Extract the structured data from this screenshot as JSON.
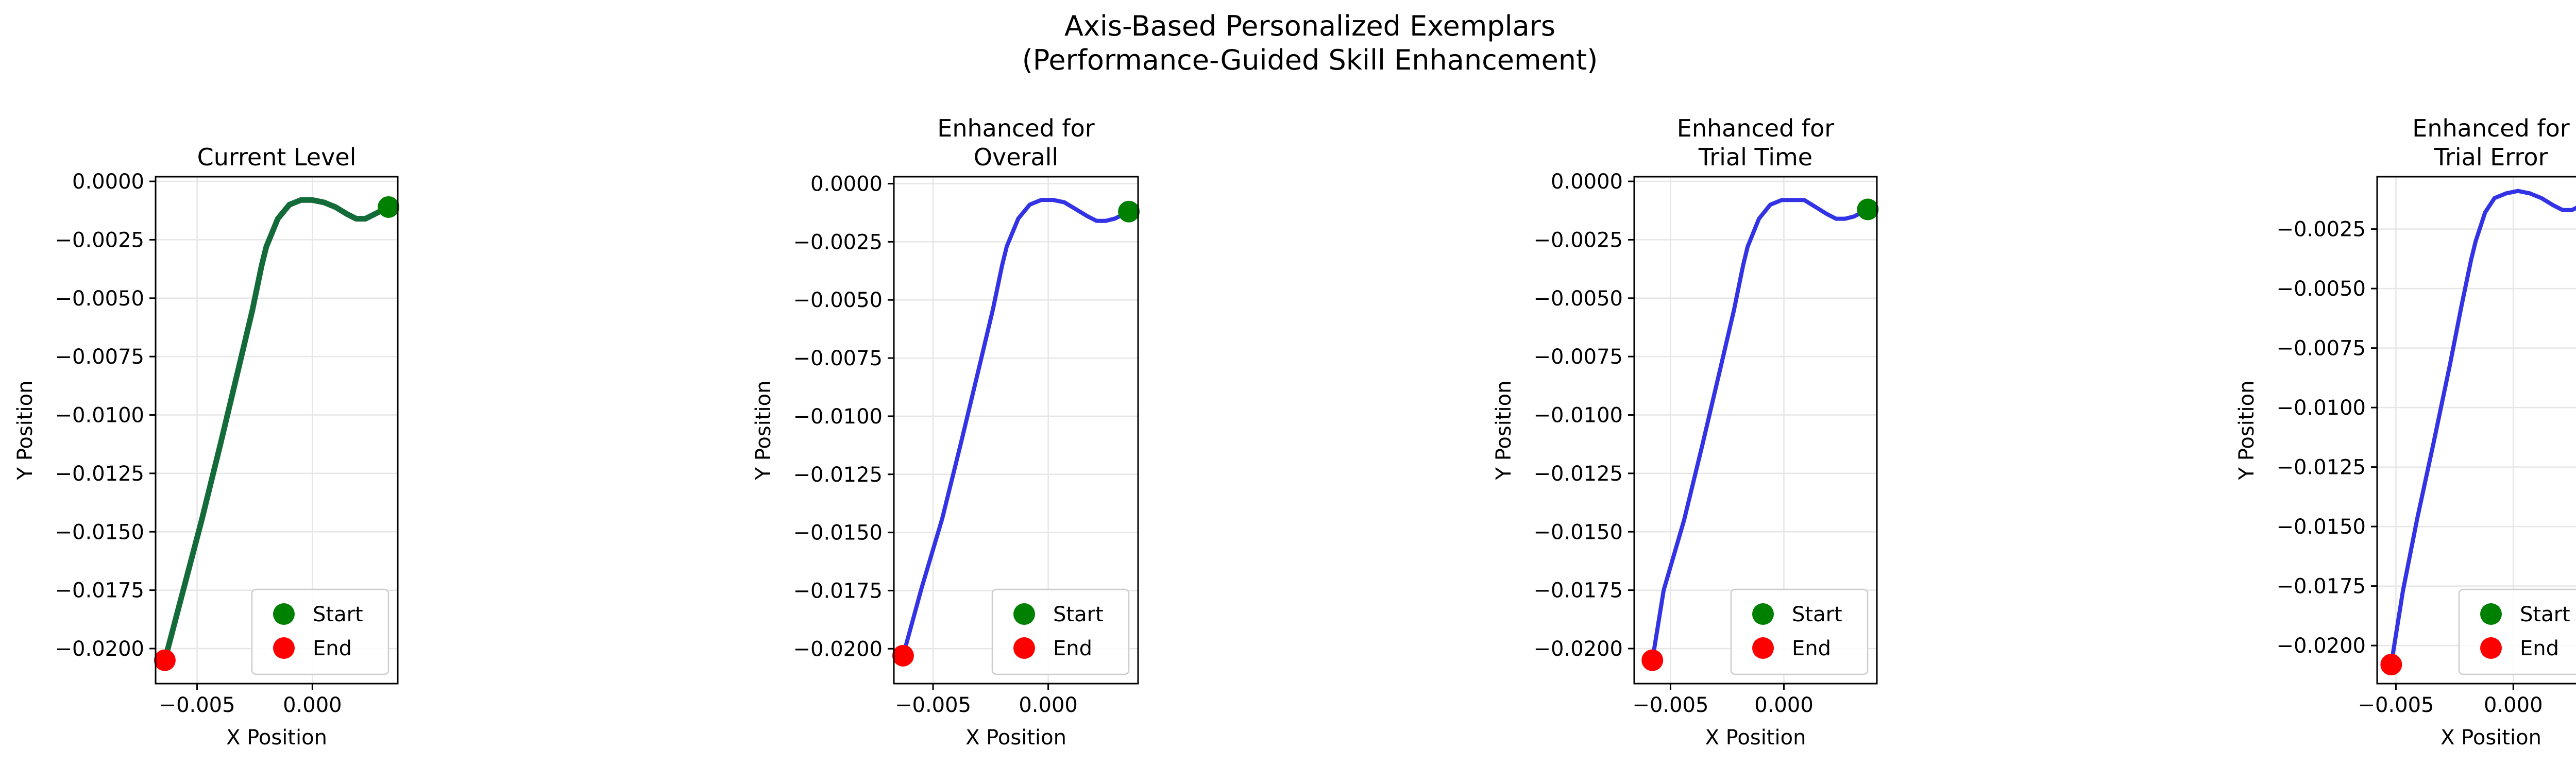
{
  "figure": {
    "title_line1": "Axis-Based Personalized Exemplars",
    "title_line2": "(Performance-Guided Skill Enhancement)"
  },
  "chart_data": [
    {
      "type": "line",
      "title_lines": [
        "Current Level"
      ],
      "xlabel": "X Position",
      "ylabel": "Y Position",
      "xlim": [
        -0.0068,
        0.0037
      ],
      "ylim": [
        -0.0215,
        0.0002
      ],
      "xticks": [
        -0.005,
        0.0
      ],
      "xtick_labels": [
        "−0.005",
        "0.000"
      ],
      "yticks": [
        0.0,
        -0.0025,
        -0.005,
        -0.0075,
        -0.01,
        -0.0125,
        -0.015,
        -0.0175,
        -0.02
      ],
      "ytick_labels": [
        "0.0000",
        "−0.0025",
        "−0.0050",
        "−0.0075",
        "−0.0100",
        "−0.0125",
        "−0.0150",
        "−0.0175",
        "−0.0200"
      ],
      "grid": true,
      "legend_position": "lower right",
      "line_color": "#146b3a",
      "start_color": "#008000",
      "end_color": "#ff0000",
      "series": [
        {
          "x": [
            0.0033,
            0.0031,
            0.0027,
            0.0023,
            0.0019,
            0.0015,
            0.001,
            0.0005,
            0.0,
            -0.0005,
            -0.001,
            -0.0015,
            -0.002,
            -0.0022,
            -0.0026,
            -0.0032,
            -0.004,
            -0.0048,
            -0.0056,
            -0.0064
          ],
          "y": [
            -0.0011,
            -0.0012,
            -0.0014,
            -0.0016,
            -0.0016,
            -0.0014,
            -0.0011,
            -0.0009,
            -0.0008,
            -0.0008,
            -0.001,
            -0.0016,
            -0.0028,
            -0.0036,
            -0.0055,
            -0.008,
            -0.0113,
            -0.0145,
            -0.0175,
            -0.0205
          ]
        }
      ],
      "legend": [
        "Start",
        "End"
      ]
    },
    {
      "type": "line",
      "title_lines": [
        "Enhanced for",
        "Overall"
      ],
      "xlabel": "X Position",
      "ylabel": "Y Position",
      "xlim": [
        -0.0067,
        0.0039
      ],
      "ylim": [
        -0.0215,
        0.0003
      ],
      "xticks": [
        -0.005,
        0.0
      ],
      "xtick_labels": [
        "−0.005",
        "0.000"
      ],
      "yticks": [
        0.0,
        -0.0025,
        -0.005,
        -0.0075,
        -0.01,
        -0.0125,
        -0.015,
        -0.0175,
        -0.02
      ],
      "ytick_labels": [
        "0.0000",
        "−0.0025",
        "−0.0050",
        "−0.0075",
        "−0.0100",
        "−0.0125",
        "−0.0150",
        "−0.0175",
        "−0.0200"
      ],
      "grid": true,
      "legend_position": "lower right",
      "line_color": "#3333e6",
      "start_color": "#008000",
      "end_color": "#ff0000",
      "series": [
        {
          "x": [
            0.0035,
            0.0033,
            0.0029,
            0.0025,
            0.0021,
            0.0017,
            0.0012,
            0.0007,
            0.0002,
            -0.0003,
            -0.0008,
            -0.0013,
            -0.0018,
            -0.002,
            -0.0024,
            -0.003,
            -0.0038,
            -0.0046,
            -0.0055,
            -0.0063
          ],
          "y": [
            -0.0012,
            -0.0013,
            -0.0015,
            -0.0016,
            -0.0016,
            -0.0014,
            -0.0011,
            -0.0008,
            -0.0007,
            -0.0007,
            -0.0009,
            -0.0015,
            -0.0027,
            -0.0035,
            -0.0054,
            -0.0079,
            -0.0112,
            -0.0144,
            -0.0174,
            -0.0203
          ]
        }
      ],
      "legend": [
        "Start",
        "End"
      ]
    },
    {
      "type": "line",
      "title_lines": [
        "Enhanced for",
        "Trial Time"
      ],
      "xlabel": "X Position",
      "ylabel": "Y Position",
      "xlim": [
        -0.0066,
        0.0041
      ],
      "ylim": [
        -0.0215,
        0.0002
      ],
      "xticks": [
        -0.005,
        0.0
      ],
      "xtick_labels": [
        "−0.005",
        "0.000"
      ],
      "yticks": [
        0.0,
        -0.0025,
        -0.005,
        -0.0075,
        -0.01,
        -0.0125,
        -0.015,
        -0.0175,
        -0.02
      ],
      "ytick_labels": [
        "0.0000",
        "−0.0025",
        "−0.0050",
        "−0.0075",
        "−0.0100",
        "−0.0125",
        "−0.0150",
        "−0.0175",
        "−0.0200"
      ],
      "grid": true,
      "legend_position": "lower right",
      "line_color": "#3333e6",
      "start_color": "#008000",
      "end_color": "#ff0000",
      "series": [
        {
          "x": [
            0.0037,
            0.0035,
            0.0031,
            0.0027,
            0.0023,
            0.0019,
            0.0014,
            0.0009,
            0.0004,
            -0.0001,
            -0.0006,
            -0.0011,
            -0.0016,
            -0.0018,
            -0.0022,
            -0.0028,
            -0.0036,
            -0.0044,
            -0.0053,
            -0.0058
          ],
          "y": [
            -0.0012,
            -0.0013,
            -0.0015,
            -0.0016,
            -0.0016,
            -0.0014,
            -0.0011,
            -0.0008,
            -0.0008,
            -0.0008,
            -0.001,
            -0.0016,
            -0.0028,
            -0.0036,
            -0.0055,
            -0.008,
            -0.0113,
            -0.0145,
            -0.0175,
            -0.0205
          ]
        }
      ],
      "legend": [
        "Start",
        "End"
      ]
    },
    {
      "type": "line",
      "title_lines": [
        "Enhanced for",
        "Trial Error"
      ],
      "xlabel": "X Position",
      "ylabel": "Y Position",
      "xlim": [
        -0.0058,
        0.0039
      ],
      "ylim": [
        -0.0216,
        -0.0003
      ],
      "xticks": [
        -0.005,
        0.0
      ],
      "xtick_labels": [
        "−0.005",
        "0.000"
      ],
      "yticks": [
        -0.0025,
        -0.005,
        -0.0075,
        -0.01,
        -0.0125,
        -0.015,
        -0.0175,
        -0.02
      ],
      "ytick_labels": [
        "−0.0025",
        "−0.0050",
        "−0.0075",
        "−0.0100",
        "−0.0125",
        "−0.0150",
        "−0.0175",
        "−0.0200"
      ],
      "grid": true,
      "legend_position": "lower right",
      "line_color": "#3333e6",
      "start_color": "#008000",
      "end_color": "#ff0000",
      "series": [
        {
          "x": [
            0.0035,
            0.0033,
            0.0029,
            0.0025,
            0.0021,
            0.0017,
            0.0012,
            0.0007,
            0.0002,
            -0.0003,
            -0.0008,
            -0.0012,
            -0.0016,
            -0.0018,
            -0.0022,
            -0.0027,
            -0.0034,
            -0.0041,
            -0.0047,
            -0.0052
          ],
          "y": [
            -0.0012,
            -0.0013,
            -0.0015,
            -0.0017,
            -0.0017,
            -0.0015,
            -0.0012,
            -0.001,
            -0.0009,
            -0.001,
            -0.0012,
            -0.0018,
            -0.003,
            -0.0038,
            -0.0057,
            -0.0082,
            -0.0115,
            -0.0147,
            -0.0177,
            -0.0208
          ]
        }
      ],
      "legend": [
        "Start",
        "End"
      ]
    }
  ]
}
